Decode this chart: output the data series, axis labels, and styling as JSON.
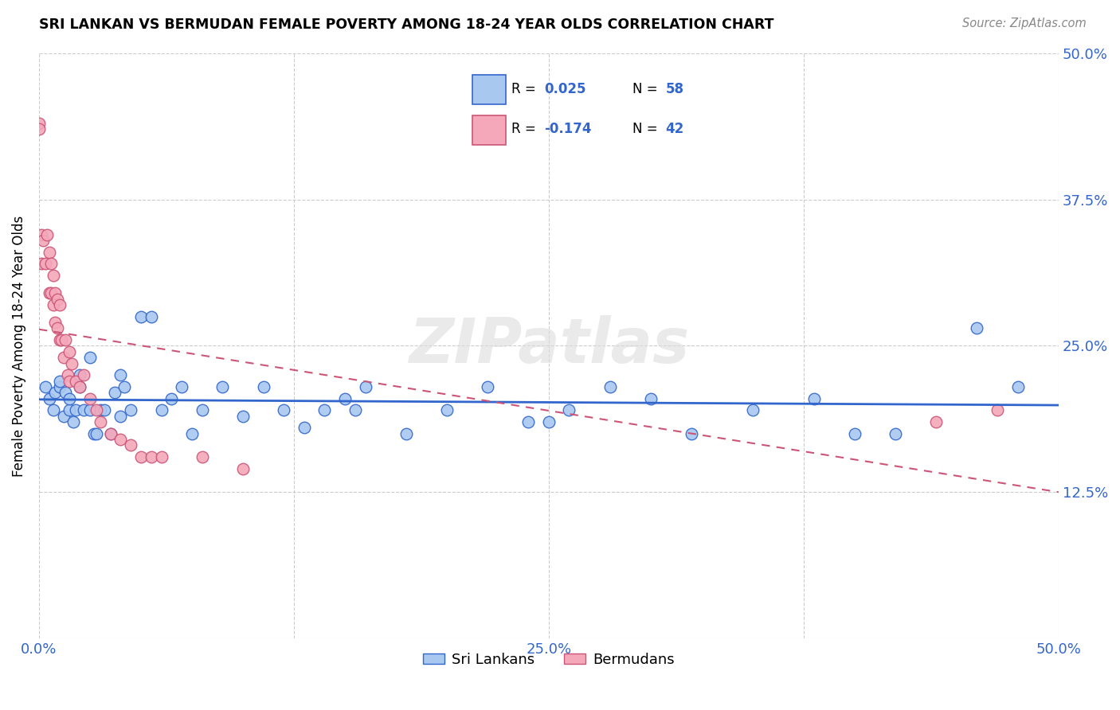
{
  "title": "SRI LANKAN VS BERMUDAN FEMALE POVERTY AMONG 18-24 YEAR OLDS CORRELATION CHART",
  "source": "Source: ZipAtlas.com",
  "ylabel": "Female Poverty Among 18-24 Year Olds",
  "xlim": [
    0,
    0.5
  ],
  "ylim": [
    0,
    0.5
  ],
  "xticks": [
    0.0,
    0.125,
    0.25,
    0.375,
    0.5
  ],
  "yticks": [
    0.0,
    0.125,
    0.25,
    0.375,
    0.5
  ],
  "xticklabels": [
    "0.0%",
    "",
    "25.0%",
    "",
    "50.0%"
  ],
  "yticklabels_right": [
    "",
    "12.5%",
    "25.0%",
    "37.5%",
    "50.0%"
  ],
  "sri_lankans_color": "#A8C8F0",
  "bermudans_color": "#F4A8BA",
  "trend_sri_color": "#3366CC",
  "trend_berm_color": "#CC5577",
  "legend_sri_R": "0.025",
  "legend_sri_N": "58",
  "legend_berm_R": "-0.174",
  "legend_berm_N": "42",
  "watermark": "ZIPatlas",
  "sri_x": [
    0.003,
    0.005,
    0.007,
    0.008,
    0.01,
    0.01,
    0.012,
    0.013,
    0.015,
    0.015,
    0.017,
    0.018,
    0.02,
    0.02,
    0.022,
    0.025,
    0.025,
    0.027,
    0.028,
    0.03,
    0.032,
    0.035,
    0.037,
    0.04,
    0.04,
    0.042,
    0.045,
    0.05,
    0.055,
    0.06,
    0.065,
    0.07,
    0.075,
    0.08,
    0.09,
    0.1,
    0.11,
    0.12,
    0.13,
    0.14,
    0.15,
    0.155,
    0.16,
    0.18,
    0.2,
    0.22,
    0.24,
    0.25,
    0.26,
    0.28,
    0.3,
    0.32,
    0.35,
    0.38,
    0.4,
    0.42,
    0.46,
    0.48
  ],
  "sri_y": [
    0.215,
    0.205,
    0.195,
    0.21,
    0.215,
    0.22,
    0.19,
    0.21,
    0.195,
    0.205,
    0.185,
    0.195,
    0.215,
    0.225,
    0.195,
    0.195,
    0.24,
    0.175,
    0.175,
    0.195,
    0.195,
    0.175,
    0.21,
    0.19,
    0.225,
    0.215,
    0.195,
    0.275,
    0.275,
    0.195,
    0.205,
    0.215,
    0.175,
    0.195,
    0.215,
    0.19,
    0.215,
    0.195,
    0.18,
    0.195,
    0.205,
    0.195,
    0.215,
    0.175,
    0.195,
    0.215,
    0.185,
    0.185,
    0.195,
    0.215,
    0.205,
    0.175,
    0.195,
    0.205,
    0.175,
    0.175,
    0.265,
    0.215
  ],
  "berm_x": [
    0.0,
    0.0,
    0.001,
    0.001,
    0.002,
    0.003,
    0.004,
    0.005,
    0.005,
    0.006,
    0.006,
    0.007,
    0.007,
    0.008,
    0.008,
    0.009,
    0.009,
    0.01,
    0.01,
    0.011,
    0.012,
    0.013,
    0.014,
    0.015,
    0.015,
    0.016,
    0.018,
    0.02,
    0.022,
    0.025,
    0.028,
    0.03,
    0.035,
    0.04,
    0.045,
    0.05,
    0.055,
    0.06,
    0.08,
    0.1,
    0.44,
    0.47
  ],
  "berm_y": [
    0.44,
    0.435,
    0.345,
    0.32,
    0.34,
    0.32,
    0.345,
    0.33,
    0.295,
    0.32,
    0.295,
    0.285,
    0.31,
    0.27,
    0.295,
    0.29,
    0.265,
    0.255,
    0.285,
    0.255,
    0.24,
    0.255,
    0.225,
    0.22,
    0.245,
    0.235,
    0.22,
    0.215,
    0.225,
    0.205,
    0.195,
    0.185,
    0.175,
    0.17,
    0.165,
    0.155,
    0.155,
    0.155,
    0.155,
    0.145,
    0.185,
    0.195
  ]
}
